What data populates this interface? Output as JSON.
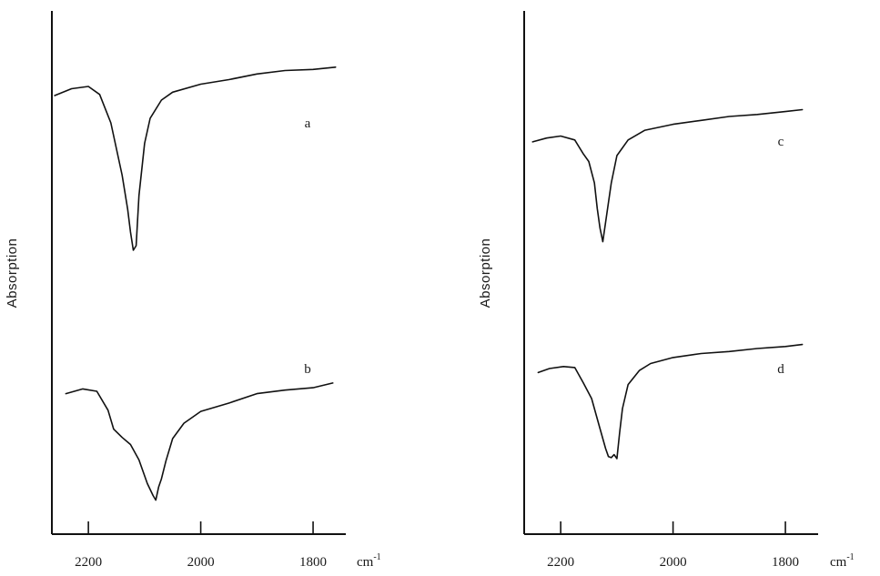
{
  "chart_data": [
    {
      "type": "line",
      "panel": "left",
      "title": "",
      "xlabel": "cm",
      "xlabel_exponent": "-1",
      "ylabel": "Absorption",
      "xlim": [
        2265,
        1745
      ],
      "x_reversed": true,
      "x_ticks": [
        2200,
        2000,
        1800
      ],
      "y_ticks": [],
      "grid": false,
      "series": [
        {
          "label": "a",
          "x": [
            2260,
            2230,
            2200,
            2180,
            2160,
            2140,
            2130,
            2125,
            2120,
            2115,
            2110,
            2100,
            2090,
            2070,
            2050,
            2000,
            1950,
            1900,
            1850,
            1800,
            1760
          ],
          "y": [
            0.74,
            0.77,
            0.78,
            0.745,
            0.62,
            0.39,
            0.24,
            0.14,
            0.06,
            0.08,
            0.3,
            0.53,
            0.64,
            0.72,
            0.755,
            0.79,
            0.81,
            0.835,
            0.85,
            0.855,
            0.865
          ]
        },
        {
          "label": "b",
          "x": [
            2240,
            2210,
            2185,
            2165,
            2155,
            2140,
            2125,
            2110,
            2095,
            2085,
            2080,
            2075,
            2070,
            2062,
            2050,
            2030,
            2000,
            1950,
            1900,
            1850,
            1800,
            1765
          ],
          "y": [
            0.49,
            0.51,
            0.5,
            0.42,
            0.34,
            0.305,
            0.275,
            0.21,
            0.11,
            0.06,
            0.04,
            0.095,
            0.13,
            0.205,
            0.3,
            0.365,
            0.415,
            0.45,
            0.49,
            0.505,
            0.515,
            0.535
          ]
        }
      ]
    },
    {
      "type": "line",
      "panel": "right",
      "title": "",
      "xlabel": "cm",
      "xlabel_exponent": "-1",
      "ylabel": "Absorption",
      "xlim": [
        2265,
        1745
      ],
      "x_reversed": true,
      "x_ticks": [
        2200,
        2000,
        1800
      ],
      "y_ticks": [],
      "grid": false,
      "series": [
        {
          "label": "c",
          "x": [
            2250,
            2225,
            2200,
            2175,
            2160,
            2150,
            2140,
            2135,
            2130,
            2125,
            2120,
            2110,
            2100,
            2080,
            2050,
            2000,
            1950,
            1900,
            1850,
            1800,
            1770
          ],
          "y": [
            0.67,
            0.69,
            0.7,
            0.68,
            0.61,
            0.57,
            0.46,
            0.33,
            0.23,
            0.16,
            0.26,
            0.46,
            0.6,
            0.68,
            0.73,
            0.76,
            0.78,
            0.8,
            0.81,
            0.825,
            0.835
          ]
        },
        {
          "label": "d",
          "x": [
            2240,
            2220,
            2195,
            2175,
            2160,
            2145,
            2130,
            2120,
            2115,
            2110,
            2105,
            2100,
            2095,
            2090,
            2080,
            2060,
            2040,
            2000,
            1950,
            1900,
            1850,
            1800,
            1770
          ],
          "y": [
            0.48,
            0.5,
            0.51,
            0.505,
            0.43,
            0.35,
            0.2,
            0.1,
            0.06,
            0.055,
            0.07,
            0.05,
            0.18,
            0.3,
            0.42,
            0.49,
            0.525,
            0.555,
            0.575,
            0.585,
            0.6,
            0.61,
            0.62
          ]
        }
      ]
    }
  ]
}
